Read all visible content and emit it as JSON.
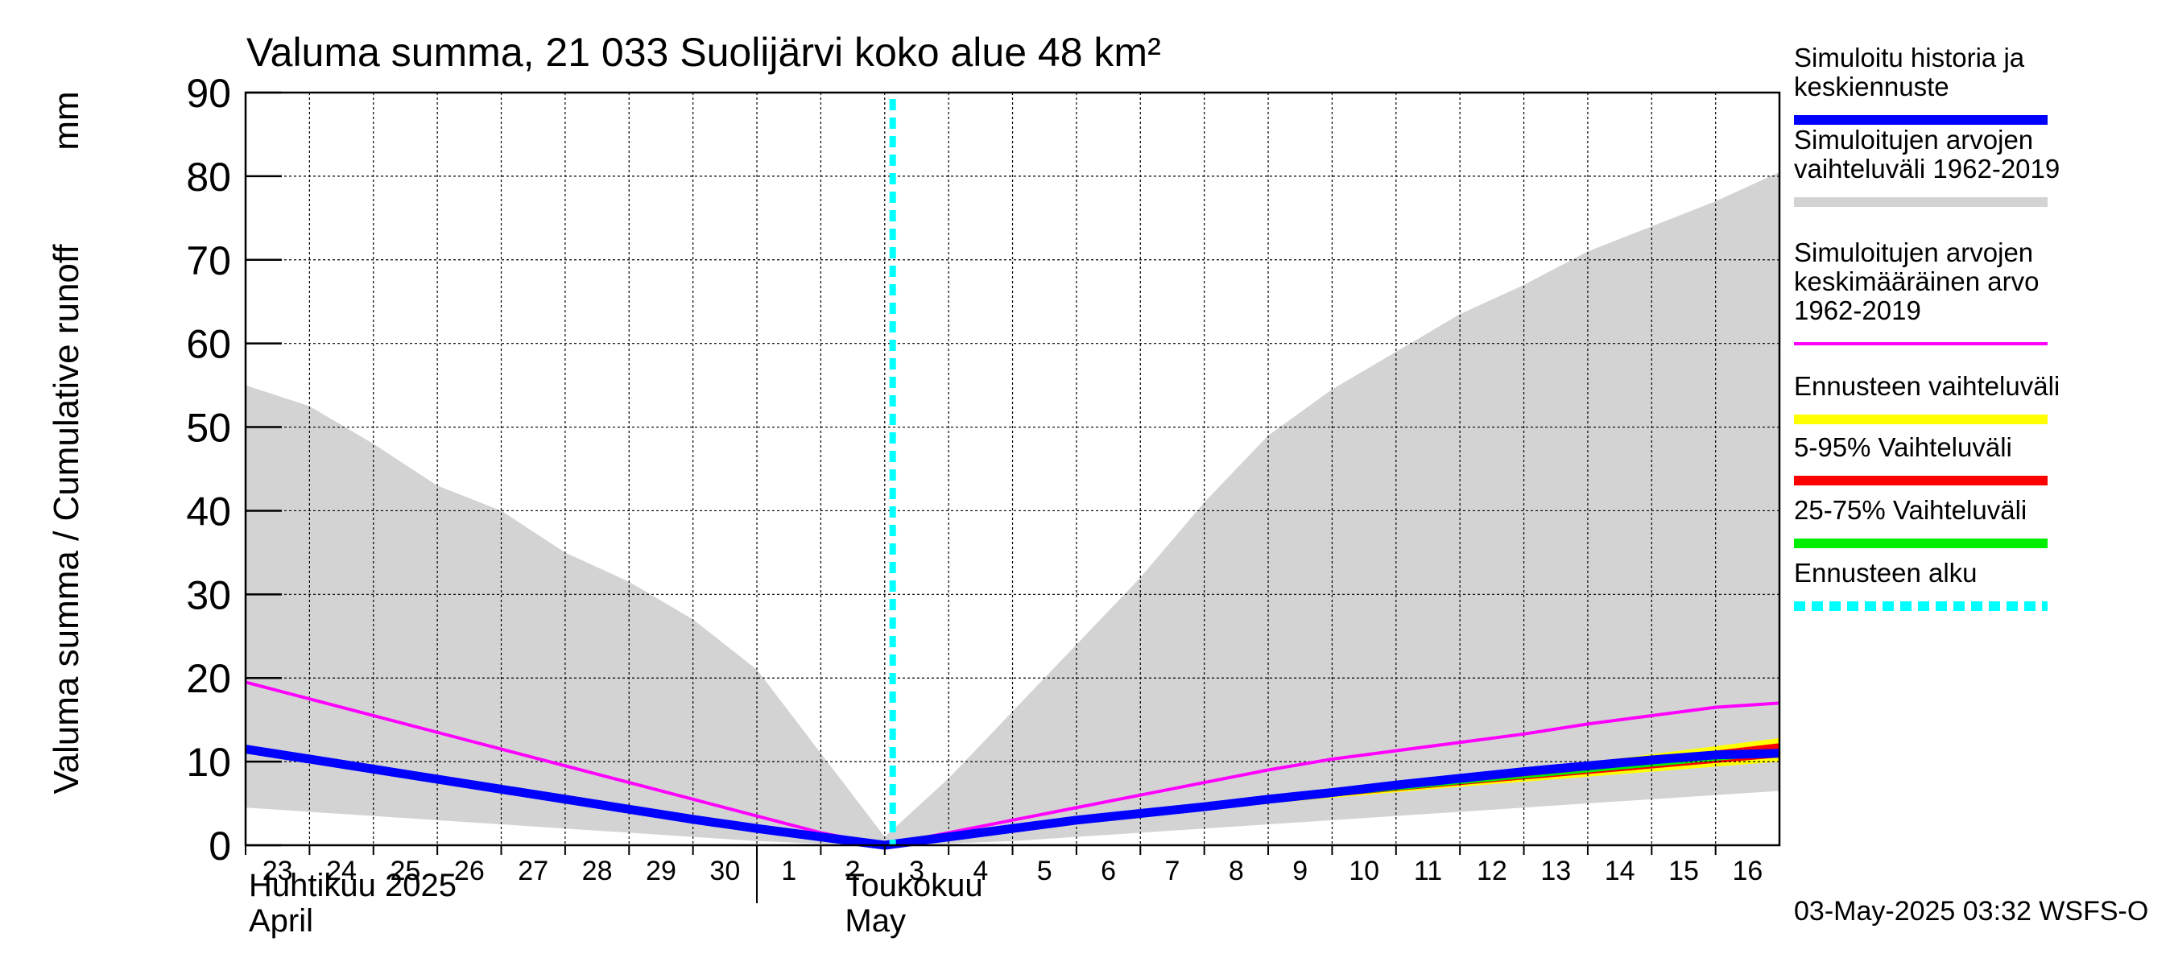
{
  "chart_data": {
    "type": "line",
    "title": "Valuma summa, 21 033 Suolijärvi koko alue 48 km²",
    "ylabel": "Valuma summa / Cumulative runoff",
    "yunit": "mm",
    "ylim": [
      0,
      90
    ],
    "yticks": [
      0,
      10,
      20,
      30,
      40,
      50,
      60,
      70,
      80,
      90
    ],
    "xlim": [
      "2025-04-23",
      "2025-05-16T23:59"
    ],
    "x_tick_labels": [
      "23",
      "24",
      "25",
      "26",
      "27",
      "28",
      "29",
      "30",
      "1",
      "2",
      "3",
      "4",
      "5",
      "6",
      "7",
      "8",
      "9",
      "10",
      "11",
      "12",
      "13",
      "14",
      "15",
      "16"
    ],
    "month_labels": [
      {
        "fi": "Huhtikuu  2025",
        "en": "April"
      },
      {
        "fi": "Toukokuu",
        "en": "May"
      }
    ],
    "grid": true,
    "forecast_start": "2025-05-03T03:00",
    "footer": "03-May-2025 03:32 WSFS-O",
    "legend_position": "right",
    "series": [
      {
        "name": "Simuloitujen arvojen vaihteluväli 1962-2019",
        "kind": "band",
        "color": "#d3d3d3",
        "x": [
          "2025-04-23",
          "2025-04-24",
          "2025-04-25",
          "2025-04-26",
          "2025-04-27",
          "2025-04-28",
          "2025-04-29",
          "2025-04-30",
          "2025-05-01",
          "2025-05-02",
          "2025-05-03",
          "2025-05-04",
          "2025-05-05",
          "2025-05-06",
          "2025-05-07",
          "2025-05-08",
          "2025-05-09",
          "2025-05-10",
          "2025-05-11",
          "2025-05-12",
          "2025-05-13",
          "2025-05-14",
          "2025-05-15",
          "2025-05-16",
          "2025-05-17"
        ],
        "upper": [
          55,
          52.5,
          48,
          43,
          40,
          35,
          31.5,
          27,
          21,
          11,
          1,
          8,
          16,
          24,
          32,
          41,
          49,
          54.5,
          59,
          63.5,
          67,
          71,
          74,
          77,
          80.5
        ],
        "lower": [
          4.5,
          4,
          3.5,
          3,
          2.5,
          2,
          1.5,
          1,
          0.5,
          0.2,
          0,
          0.2,
          0.5,
          1,
          1.5,
          2,
          2.5,
          3,
          3.5,
          4,
          4.5,
          5,
          5.5,
          6,
          6.5
        ]
      },
      {
        "name": "Simuloitujen arvojen keskimääräinen arvo 1962-2019",
        "kind": "line",
        "color": "#ff00ff",
        "x": [
          "2025-04-23",
          "2025-04-24",
          "2025-04-25",
          "2025-04-26",
          "2025-04-27",
          "2025-04-28",
          "2025-04-29",
          "2025-04-30",
          "2025-05-01",
          "2025-05-02",
          "2025-05-03",
          "2025-05-04",
          "2025-05-05",
          "2025-05-06",
          "2025-05-07",
          "2025-05-08",
          "2025-05-09",
          "2025-05-10",
          "2025-05-11",
          "2025-05-12",
          "2025-05-13",
          "2025-05-14",
          "2025-05-15",
          "2025-05-16",
          "2025-05-17"
        ],
        "values": [
          19.5,
          17.5,
          15.5,
          13.5,
          11.5,
          9.5,
          7.5,
          5.5,
          3.5,
          1.5,
          0,
          1.5,
          3,
          4.5,
          6,
          7.5,
          9,
          10.3,
          11.3,
          12.3,
          13.3,
          14.5,
          15.5,
          16.5,
          17
        ]
      },
      {
        "name": "Ennusteen vaihteluväli",
        "kind": "band",
        "color": "#ffff00",
        "x": [
          "2025-05-03",
          "2025-05-08",
          "2025-05-09",
          "2025-05-12",
          "2025-05-17"
        ],
        "upper": [
          0,
          4.5,
          5.5,
          8,
          12.8
        ],
        "lower": [
          0,
          4.2,
          5,
          7,
          10
        ]
      },
      {
        "name": "5-95% Vaihteluväli",
        "kind": "band",
        "color": "#ff0000",
        "x": [
          "2025-05-03",
          "2025-05-08",
          "2025-05-09",
          "2025-05-12",
          "2025-05-17"
        ],
        "upper": [
          0,
          4.4,
          5.3,
          7.8,
          12.2
        ],
        "lower": [
          0,
          4.2,
          5.1,
          7.2,
          10.5
        ]
      },
      {
        "name": "25-75% Vaihteluväli",
        "kind": "band",
        "color": "#00ee00",
        "x": [
          "2025-05-03",
          "2025-05-08",
          "2025-05-09",
          "2025-05-12",
          "2025-05-17"
        ],
        "upper": [
          0,
          4.3,
          5.2,
          7.5,
          11.2
        ],
        "lower": [
          0,
          4.2,
          5.1,
          7.3,
          10.8
        ]
      },
      {
        "name": "Simuloitu historia ja keskiennuste",
        "kind": "line",
        "color": "#0000ff",
        "x": [
          "2025-04-23",
          "2025-04-24",
          "2025-04-25",
          "2025-04-26",
          "2025-04-27",
          "2025-04-28",
          "2025-04-29",
          "2025-04-30",
          "2025-05-01",
          "2025-05-02",
          "2025-05-03",
          "2025-05-04",
          "2025-05-05",
          "2025-05-06",
          "2025-05-07",
          "2025-05-08",
          "2025-05-09",
          "2025-05-10",
          "2025-05-11",
          "2025-05-12",
          "2025-05-13",
          "2025-05-14",
          "2025-05-15",
          "2025-05-16",
          "2025-05-17"
        ],
        "values": [
          11.5,
          10.3,
          9.1,
          7.9,
          6.7,
          5.5,
          4.3,
          3.1,
          2,
          1,
          0,
          1,
          2,
          3,
          3.8,
          4.6,
          5.5,
          6.3,
          7.2,
          8,
          8.8,
          9.5,
          10.2,
          10.8,
          11
        ]
      }
    ]
  },
  "legend": [
    {
      "label_lines": [
        "Simuloitu historia ja",
        "keskiennuste"
      ],
      "color": "#0000ff",
      "style": "solid"
    },
    {
      "label_lines": [
        "Simuloitujen arvojen",
        "vaihteluväli 1962-2019"
      ],
      "color": "#d3d3d3",
      "style": "solid"
    },
    {
      "label_lines": [
        "Simuloitujen arvojen",
        "keskimääräinen arvo",
        "   1962-2019"
      ],
      "color": "#ff00ff",
      "style": "thin"
    },
    {
      "label_lines": [
        "Ennusteen vaihteluväli"
      ],
      "color": "#ffff00",
      "style": "solid"
    },
    {
      "label_lines": [
        "5-95% Vaihteluväli"
      ],
      "color": "#ff0000",
      "style": "solid"
    },
    {
      "label_lines": [
        "25-75% Vaihteluväli"
      ],
      "color": "#00ee00",
      "style": "solid"
    },
    {
      "label_lines": [
        "Ennusteen alku"
      ],
      "color": "#00ffff",
      "style": "dashed"
    }
  ]
}
